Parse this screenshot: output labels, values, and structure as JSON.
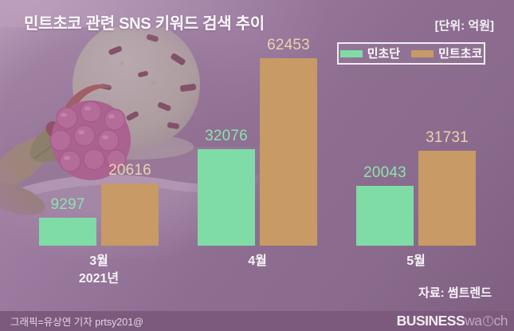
{
  "title": "민트초코 관련 SNS 키워드 검색 추이",
  "unit_label": "[단위: 억원]",
  "legend": {
    "items": [
      {
        "label": "민초단",
        "color": "#7fdca6"
      },
      {
        "label": "민트초코",
        "color": "#c79a66"
      }
    ]
  },
  "chart_data": {
    "type": "bar",
    "title": "민트초코 관련 SNS 키워드 검색 추이",
    "unit": "억원",
    "categories": [
      "3월",
      "4월",
      "5월"
    ],
    "x_sub_labels": [
      "2021년",
      "",
      ""
    ],
    "series": [
      {
        "name": "민초단",
        "slug": "minchodan",
        "color": "#7fdca6",
        "value_label_color": "#8ae4ad",
        "values": [
          9297,
          32076,
          20043
        ]
      },
      {
        "name": "민트초코",
        "slug": "mintchoco",
        "color": "#c79a66",
        "value_label_color": "#e9d3ad",
        "values": [
          20616,
          62453,
          31731
        ]
      }
    ],
    "ylim": [
      0,
      66000
    ],
    "grid": false,
    "legend_position": "top-right",
    "value_labels": true,
    "xlabel": "",
    "ylabel": ""
  },
  "source": "자료: 썸트렌드",
  "footer": {
    "credit": "그래픽=유상연 기자 prtsy201@",
    "logo": {
      "bold": "BUSINESS",
      "light_pre": "wa",
      "light_circled": "t",
      "light_post": "ch"
    }
  },
  "colors": {
    "background_top_left": "#ab8cac",
    "background_right": "#8a6b8d",
    "background_bottom": "#7e5e81",
    "footer_band": "#7b5a7d",
    "title_text": "#fbf8fb",
    "axis_text": "#f8f2f8",
    "mint_bar": "#7fdca6",
    "choco_bar": "#c79a66",
    "mint_value_text": "#8ae4ad",
    "choco_value_text": "#e9d3ad"
  }
}
